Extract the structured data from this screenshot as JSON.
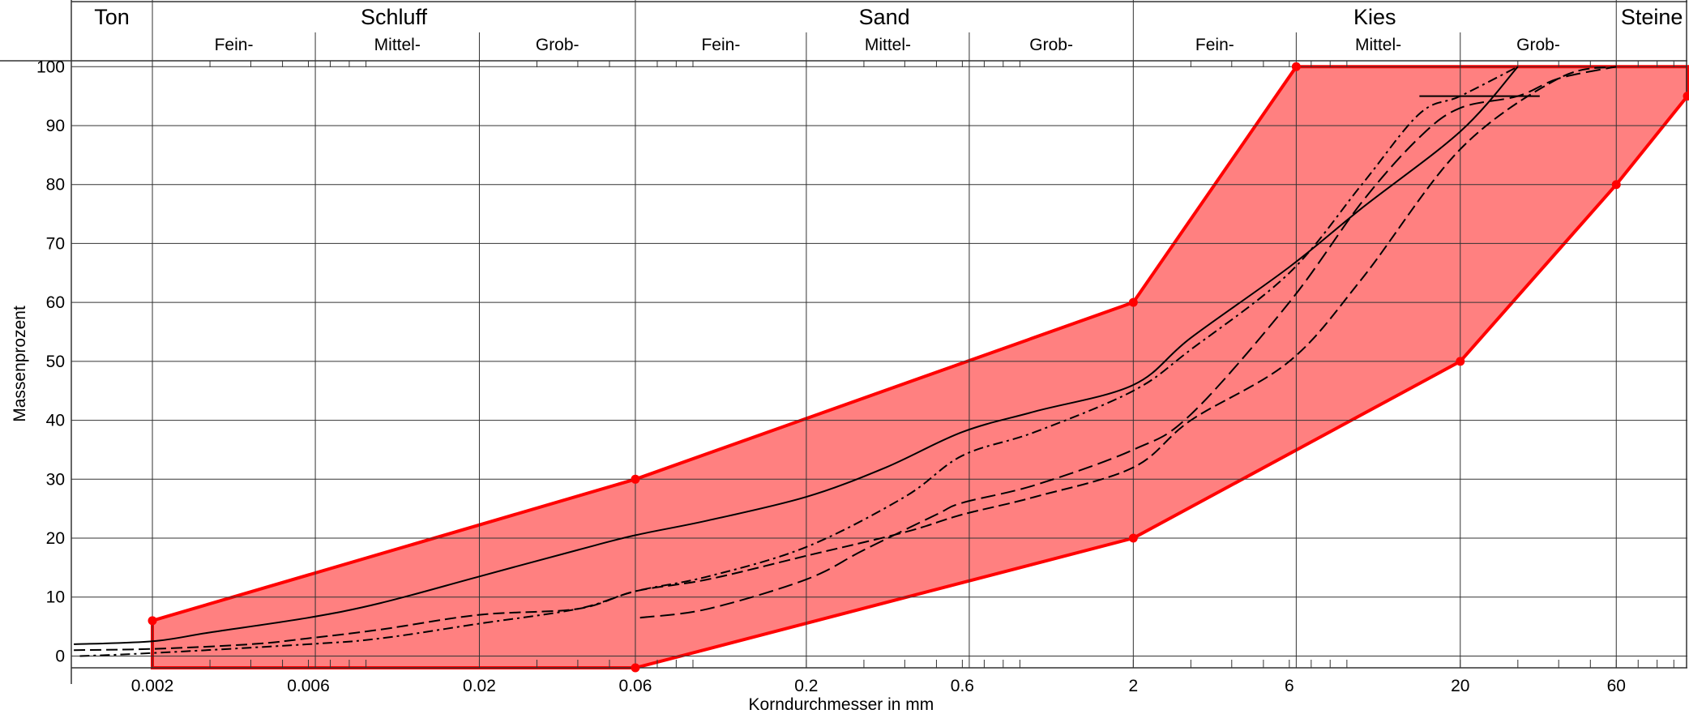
{
  "chart_data": {
    "type": "line",
    "title": "",
    "xlabel": "Korndurchmesser in mm",
    "ylabel": "Massenprozent",
    "x_scale": "log",
    "xlim": [
      0.00113,
      99
    ],
    "ylim": [
      -2,
      101
    ],
    "grid": true,
    "x_ticks": [
      {
        "value": 0.002,
        "label": "0.002"
      },
      {
        "value": 0.006,
        "label": "0.006"
      },
      {
        "value": 0.02,
        "label": "0.02"
      },
      {
        "value": 0.06,
        "label": "0.06"
      },
      {
        "value": 0.2,
        "label": "0.2"
      },
      {
        "value": 0.6,
        "label": "0.6"
      },
      {
        "value": 2,
        "label": "2"
      },
      {
        "value": 6,
        "label": "6"
      },
      {
        "value": 20,
        "label": "20"
      },
      {
        "value": 60,
        "label": "60"
      }
    ],
    "y_ticks": [
      {
        "value": 0,
        "label": "0"
      },
      {
        "value": 10,
        "label": "10"
      },
      {
        "value": 20,
        "label": "20"
      },
      {
        "value": 30,
        "label": "30"
      },
      {
        "value": 40,
        "label": "40"
      },
      {
        "value": 50,
        "label": "50"
      },
      {
        "value": 60,
        "label": "60"
      },
      {
        "value": 70,
        "label": "70"
      },
      {
        "value": 80,
        "label": "80"
      },
      {
        "value": 90,
        "label": "90"
      },
      {
        "value": 100,
        "label": "100"
      }
    ],
    "soil_classes": [
      {
        "name": "Ton",
        "from": 0.00113,
        "to": 0.002
      },
      {
        "name": "Schluff",
        "from": 0.002,
        "to": 0.06
      },
      {
        "name": "Sand",
        "from": 0.06,
        "to": 2
      },
      {
        "name": "Kies",
        "from": 2,
        "to": 60
      },
      {
        "name": "Steine",
        "from": 60,
        "to": 99
      }
    ],
    "sub_classes": [
      {
        "name": "Fein-",
        "from": 0.002,
        "to": 0.0063
      },
      {
        "name": "Mittel-",
        "from": 0.0063,
        "to": 0.02
      },
      {
        "name": "Grob-",
        "from": 0.02,
        "to": 0.06
      },
      {
        "name": "Fein-",
        "from": 0.06,
        "to": 0.2
      },
      {
        "name": "Mittel-",
        "from": 0.2,
        "to": 0.63
      },
      {
        "name": "Grob-",
        "from": 0.63,
        "to": 2
      },
      {
        "name": "Fein-",
        "from": 2,
        "to": 6.3
      },
      {
        "name": "Mittel-",
        "from": 6.3,
        "to": 20
      },
      {
        "name": "Grob-",
        "from": 20,
        "to": 60
      }
    ],
    "envelope": {
      "color": "#ff8080",
      "border_color": "#ff0000",
      "upper": [
        [
          0.002,
          6
        ],
        [
          0.06,
          30
        ],
        [
          2,
          60
        ],
        [
          6.3,
          100
        ],
        [
          99,
          100
        ]
      ],
      "lower": [
        [
          0.002,
          -2
        ],
        [
          0.06,
          -2
        ],
        [
          2,
          20
        ],
        [
          20,
          50
        ],
        [
          60,
          80
        ],
        [
          99,
          95
        ]
      ],
      "markers": [
        [
          0.002,
          6
        ],
        [
          0.06,
          30
        ],
        [
          2,
          60
        ],
        [
          6.3,
          100
        ],
        [
          0.06,
          -2
        ],
        [
          2,
          20
        ],
        [
          20,
          50
        ],
        [
          60,
          80
        ],
        [
          99,
          95
        ]
      ]
    },
    "series": [
      {
        "style": "solid",
        "points": [
          [
            0.00115,
            2
          ],
          [
            0.002,
            2.5
          ],
          [
            0.003,
            4
          ],
          [
            0.006,
            6.5
          ],
          [
            0.01,
            9
          ],
          [
            0.02,
            13.5
          ],
          [
            0.04,
            18
          ],
          [
            0.06,
            20.5
          ],
          [
            0.1,
            23
          ],
          [
            0.2,
            27
          ],
          [
            0.35,
            32
          ],
          [
            0.6,
            38
          ],
          [
            1,
            41.5
          ],
          [
            2,
            46
          ],
          [
            3,
            54
          ],
          [
            6,
            66
          ],
          [
            10,
            76
          ],
          [
            20,
            89
          ],
          [
            30,
            100
          ]
        ]
      },
      {
        "style": "dashed",
        "points": [
          [
            0.00115,
            1
          ],
          [
            0.002,
            1.2
          ],
          [
            0.004,
            2
          ],
          [
            0.006,
            3
          ],
          [
            0.01,
            4.5
          ],
          [
            0.02,
            7
          ],
          [
            0.04,
            8
          ],
          [
            0.06,
            11
          ],
          [
            0.1,
            13
          ],
          [
            0.2,
            17
          ],
          [
            0.4,
            21
          ],
          [
            0.6,
            24
          ],
          [
            1,
            27
          ],
          [
            2,
            32
          ],
          [
            3,
            40
          ],
          [
            6,
            50
          ],
          [
            10,
            64
          ],
          [
            20,
            86
          ],
          [
            40,
            98
          ],
          [
            60,
            100
          ]
        ]
      },
      {
        "style": "dash-dot",
        "points": [
          [
            0.0012,
            0
          ],
          [
            0.002,
            0.5
          ],
          [
            0.006,
            2
          ],
          [
            0.01,
            3
          ],
          [
            0.02,
            5.5
          ],
          [
            0.04,
            8
          ],
          [
            0.06,
            11
          ],
          [
            0.1,
            13.5
          ],
          [
            0.2,
            18.5
          ],
          [
            0.4,
            27
          ],
          [
            0.6,
            34
          ],
          [
            1,
            38
          ],
          [
            2,
            45
          ],
          [
            3,
            52
          ],
          [
            6,
            65
          ],
          [
            10,
            80
          ],
          [
            15,
            92
          ],
          [
            20,
            95
          ],
          [
            30,
            100
          ]
        ]
      },
      {
        "style": "long-dash",
        "points": [
          [
            0.062,
            6.5
          ],
          [
            0.1,
            8
          ],
          [
            0.2,
            13
          ],
          [
            0.3,
            18
          ],
          [
            0.5,
            24
          ],
          [
            0.6,
            26
          ],
          [
            1,
            29
          ],
          [
            2,
            35
          ],
          [
            3,
            41
          ],
          [
            6,
            60
          ],
          [
            10,
            77
          ],
          [
            15,
            88
          ],
          [
            20,
            93
          ],
          [
            30,
            95
          ],
          [
            40,
            98
          ],
          [
            60,
            100
          ]
        ]
      }
    ],
    "annotations": [
      {
        "type": "hline",
        "y": 95,
        "x_from": 15,
        "x_to": 35
      }
    ]
  }
}
